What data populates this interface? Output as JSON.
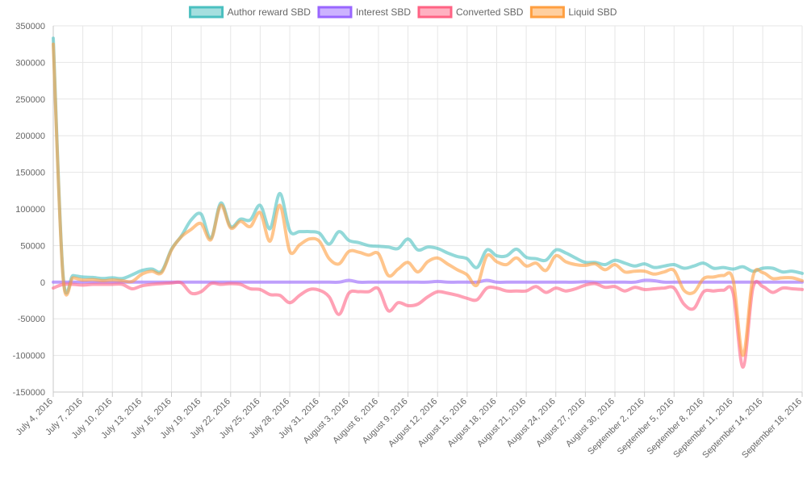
{
  "chart_data": {
    "type": "line",
    "title": "",
    "xlabel": "",
    "ylabel": "",
    "ylim": [
      -150000,
      350000
    ],
    "y_ticks": [
      350000,
      300000,
      250000,
      200000,
      150000,
      100000,
      50000,
      0,
      -50000,
      -100000,
      -150000
    ],
    "y_tick_labels": [
      "350000",
      "300000",
      "250000",
      "200000",
      "150000",
      "100000",
      "50000",
      "0",
      "-50000",
      "-100000",
      "-150000"
    ],
    "x": [
      "2016-07-04",
      "2016-07-05",
      "2016-07-06",
      "2016-07-07",
      "2016-07-08",
      "2016-07-09",
      "2016-07-10",
      "2016-07-11",
      "2016-07-12",
      "2016-07-13",
      "2016-07-14",
      "2016-07-15",
      "2016-07-16",
      "2016-07-17",
      "2016-07-18",
      "2016-07-19",
      "2016-07-20",
      "2016-07-21",
      "2016-07-22",
      "2016-07-23",
      "2016-07-24",
      "2016-07-25",
      "2016-07-26",
      "2016-07-27",
      "2016-07-28",
      "2016-07-29",
      "2016-07-30",
      "2016-07-31",
      "2016-08-01",
      "2016-08-02",
      "2016-08-03",
      "2016-08-04",
      "2016-08-05",
      "2016-08-06",
      "2016-08-07",
      "2016-08-08",
      "2016-08-09",
      "2016-08-10",
      "2016-08-11",
      "2016-08-12",
      "2016-08-13",
      "2016-08-14",
      "2016-08-15",
      "2016-08-16",
      "2016-08-17",
      "2016-08-18",
      "2016-08-19",
      "2016-08-20",
      "2016-08-21",
      "2016-08-22",
      "2016-08-23",
      "2016-08-24",
      "2016-08-25",
      "2016-08-26",
      "2016-08-27",
      "2016-08-28",
      "2016-08-29",
      "2016-08-30",
      "2016-08-31",
      "2016-09-01",
      "2016-09-02",
      "2016-09-03",
      "2016-09-04",
      "2016-09-05",
      "2016-09-06",
      "2016-09-07",
      "2016-09-08",
      "2016-09-09",
      "2016-09-10",
      "2016-09-11",
      "2016-09-12",
      "2016-09-13",
      "2016-09-14",
      "2016-09-15",
      "2016-09-16",
      "2016-09-17",
      "2016-09-18"
    ],
    "x_tick_labels": [
      "July 4, 2016",
      "July 7, 2016",
      "July 10, 2016",
      "July 13, 2016",
      "July 16, 2016",
      "July 19, 2016",
      "July 22, 2016",
      "July 25, 2016",
      "July 28, 2016",
      "July 31, 2016",
      "August 3, 2016",
      "August 6, 2016",
      "August 9, 2016",
      "August 12, 2016",
      "August 15, 2016",
      "August 18, 2016",
      "August 21, 2016",
      "August 24, 2016",
      "August 27, 2016",
      "August 30, 2016",
      "September 2, 2016",
      "September 5, 2016",
      "September 8, 2016",
      "September 11, 2016",
      "September 14, 2016",
      "September 18, 2016"
    ],
    "x_tick_dates": [
      "2016-07-04",
      "2016-07-07",
      "2016-07-10",
      "2016-07-13",
      "2016-07-16",
      "2016-07-19",
      "2016-07-22",
      "2016-07-25",
      "2016-07-28",
      "2016-07-31",
      "2016-08-03",
      "2016-08-06",
      "2016-08-09",
      "2016-08-12",
      "2016-08-15",
      "2016-08-18",
      "2016-08-21",
      "2016-08-24",
      "2016-08-27",
      "2016-08-30",
      "2016-09-02",
      "2016-09-05",
      "2016-09-08",
      "2016-09-11",
      "2016-09-14",
      "2016-09-18"
    ],
    "grid": true,
    "legend": "top",
    "series": [
      {
        "name": "Author reward SBD",
        "color": "#4bc0c0",
        "values": [
          333000,
          9000,
          9000,
          7000,
          6500,
          5000,
          6000,
          5000,
          10000,
          16000,
          18000,
          15000,
          45000,
          63000,
          85000,
          93000,
          60000,
          108000,
          76000,
          86000,
          85000,
          105000,
          73000,
          121000,
          70000,
          69000,
          69000,
          67000,
          52000,
          69000,
          57000,
          54000,
          50000,
          49000,
          48000,
          46000,
          59000,
          44000,
          48000,
          46000,
          40000,
          35000,
          32000,
          20000,
          44000,
          36000,
          36000,
          45000,
          34000,
          32000,
          30000,
          44000,
          40000,
          33000,
          27000,
          27000,
          24000,
          30000,
          26000,
          22000,
          25000,
          20000,
          22000,
          24000,
          19000,
          22000,
          26000,
          19000,
          20000,
          18000,
          21000,
          15000,
          19000,
          19000,
          14000,
          15000,
          12000
        ]
      },
      {
        "name": "Interest SBD",
        "color": "#9966ff",
        "values": [
          0,
          0,
          0,
          0,
          0,
          0,
          0,
          0,
          0,
          0,
          0,
          0,
          0,
          0,
          0,
          0,
          0,
          0,
          0,
          0,
          0,
          0,
          0,
          0,
          0,
          0,
          0,
          0,
          0,
          0,
          2500,
          0,
          0,
          0,
          0,
          0,
          0,
          0,
          0,
          1000,
          0,
          0,
          0,
          0,
          2500,
          0,
          0,
          0,
          0,
          0,
          0,
          0,
          0,
          0,
          500,
          0,
          0,
          0,
          0,
          0,
          2500,
          2000,
          0,
          0,
          0,
          0,
          0,
          0,
          0,
          0,
          0,
          0,
          0,
          0,
          0,
          0,
          0
        ]
      },
      {
        "name": "Converted SBD",
        "color": "#ff6384",
        "values": [
          -8000,
          -3000,
          -3000,
          -4000,
          -3000,
          -3000,
          -3000,
          -3000,
          -9000,
          -5000,
          -3000,
          -2000,
          -1000,
          -1000,
          -15000,
          -13000,
          -2000,
          -3000,
          -2000,
          -3000,
          -9000,
          -10000,
          -17000,
          -18000,
          -28000,
          -18000,
          -10000,
          -11000,
          -20000,
          -44000,
          -15000,
          -13000,
          -13000,
          -9000,
          -39000,
          -28000,
          -32000,
          -30000,
          -20000,
          -13000,
          -15000,
          -18000,
          -22000,
          -24000,
          -8000,
          -8000,
          -12000,
          -12000,
          -12000,
          -6000,
          -14000,
          -8000,
          -12000,
          -9000,
          -4000,
          -2000,
          -7000,
          -6000,
          -12000,
          -7000,
          -10000,
          -9000,
          -8000,
          -8000,
          -30000,
          -36000,
          -13000,
          -12000,
          -11000,
          -15000,
          -116000,
          -8000,
          -6000,
          -14000,
          -8000,
          -9000,
          -10000
        ]
      },
      {
        "name": "Liquid SBD",
        "color": "#ff9f40",
        "values": [
          325000,
          6000,
          6000,
          3000,
          3500,
          2000,
          3000,
          2000,
          1000,
          11000,
          15000,
          13000,
          44000,
          62000,
          72000,
          80000,
          58000,
          105000,
          74000,
          83000,
          76000,
          95000,
          56000,
          105000,
          42000,
          51000,
          59000,
          56000,
          32000,
          25000,
          42000,
          41000,
          37000,
          39000,
          9000,
          18000,
          27000,
          14000,
          28000,
          33000,
          25000,
          17000,
          10000,
          -4000,
          36000,
          28000,
          24000,
          33000,
          22000,
          26000,
          16000,
          36000,
          28000,
          24000,
          23000,
          25000,
          17000,
          24000,
          14000,
          15000,
          15000,
          11000,
          14000,
          16000,
          -11000,
          -14000,
          5000,
          7000,
          9000,
          3000,
          -100000,
          7000,
          13000,
          5000,
          6000,
          6000,
          2000
        ]
      }
    ]
  }
}
